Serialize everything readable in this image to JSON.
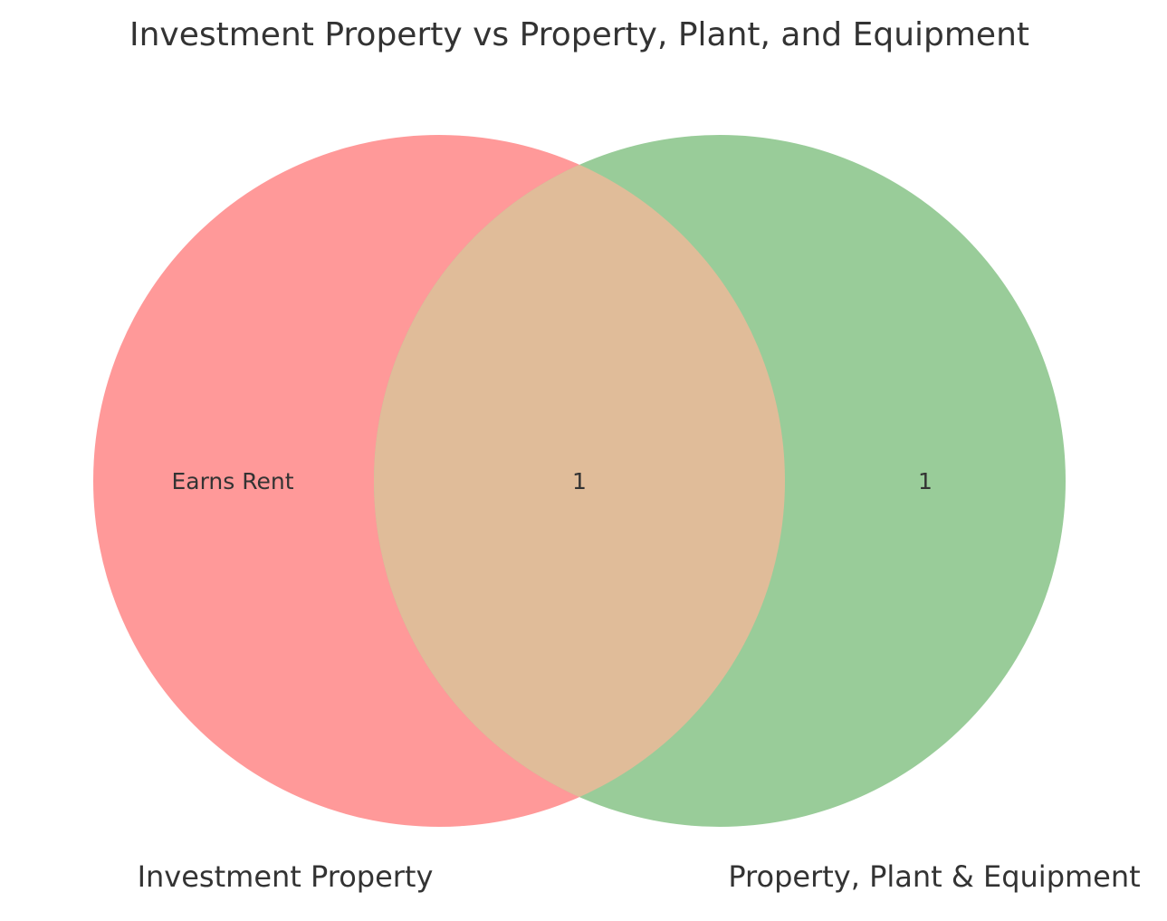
{
  "diagram": {
    "type": "venn",
    "title": "Investment Property vs Property, Plant, and Equipment",
    "sets": [
      {
        "name": "Investment Property",
        "color": "#ff9999",
        "exclusive_label": "Earns Rent"
      },
      {
        "name": "Property, Plant & Equipment",
        "color": "#99cc99",
        "exclusive_label": "1"
      }
    ],
    "intersection": {
      "label": "1",
      "color": "#e0bc99"
    }
  }
}
